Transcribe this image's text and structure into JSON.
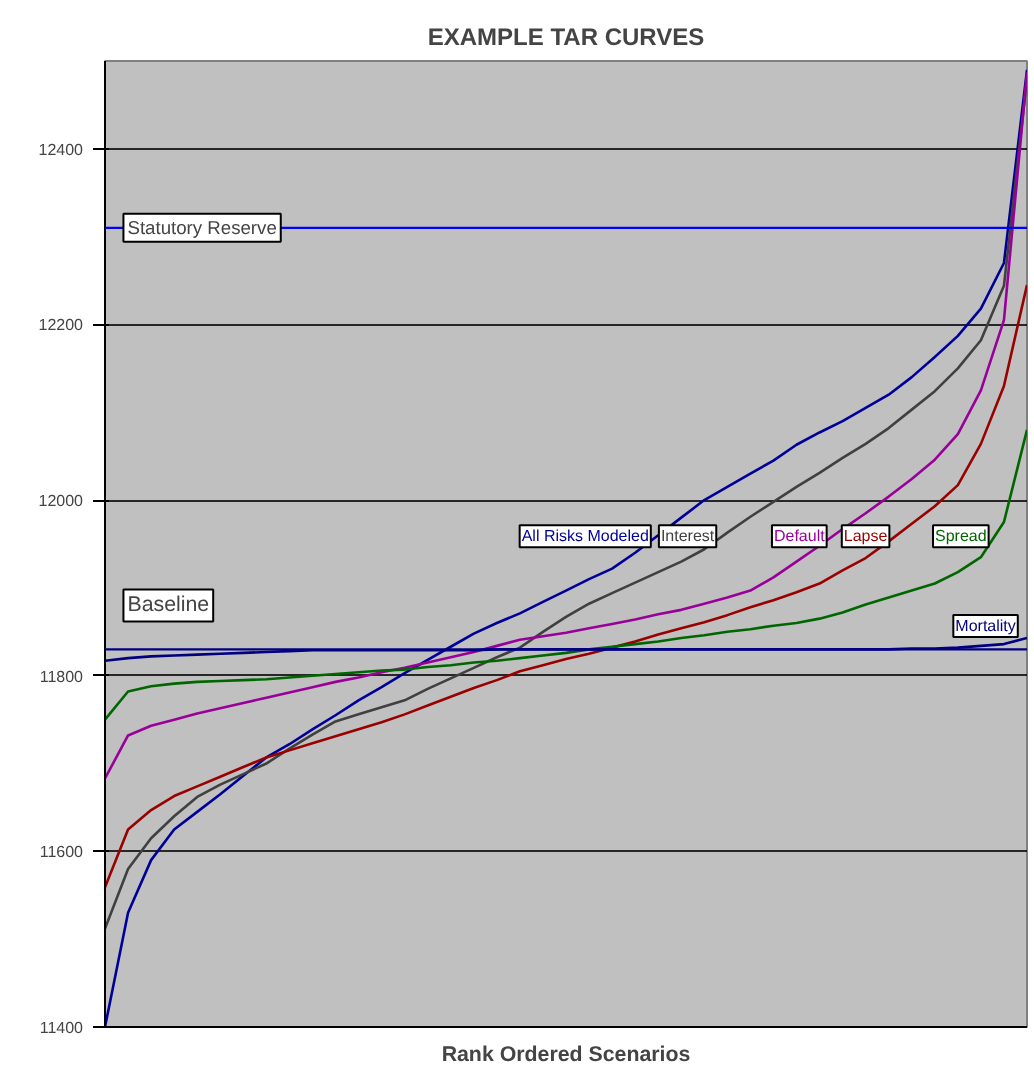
{
  "chart_data": {
    "type": "line",
    "title": "EXAMPLE TAR CURVES",
    "xlabel": "Rank Ordered Scenarios",
    "categories": [
      null,
      null,
      null,
      null,
      null,
      null,
      null,
      null,
      null,
      null,
      null,
      null,
      null,
      null,
      null,
      null,
      null,
      null,
      null,
      null,
      null,
      null,
      null,
      null,
      null,
      null,
      null,
      null,
      null,
      null,
      null,
      null,
      null,
      null,
      null,
      null,
      null,
      null,
      null,
      null,
      null
    ],
    "ylim": [
      11400,
      12500
    ],
    "yticks": [
      11400,
      11600,
      11800,
      12000,
      12200,
      12400
    ],
    "grid": "y",
    "tick_labels": "y",
    "marker": "none",
    "line_style": "solid",
    "series": [
      {
        "name": "All Risks Modeled",
        "color": "#000099",
        "values": [
          11400,
          11530,
          11590,
          11625,
          11645,
          11665,
          11686,
          11707,
          11722,
          11739,
          11755,
          11772,
          11787,
          11803,
          11818,
          11833,
          11848,
          11860,
          11871,
          11884,
          11897,
          11910,
          11922,
          11940,
          11960,
          11980,
          12000,
          12015,
          12030,
          12045,
          12063,
          12077,
          12090,
          12105,
          12120,
          12140,
          12163,
          12187,
          12218,
          12270,
          12490
        ]
      },
      {
        "name": "Interest",
        "color": "#404040",
        "values": [
          11512,
          11580,
          11615,
          11640,
          11662,
          11676,
          11688,
          11700,
          11717,
          11733,
          11748,
          11756,
          11764,
          11772,
          11785,
          11797,
          11809,
          11821,
          11832,
          11850,
          11867,
          11882,
          11894,
          11906,
          11918,
          11930,
          11944,
          11963,
          11981,
          11998,
          12015,
          12031,
          12048,
          12064,
          12082,
          12103,
          12124,
          12150,
          12182,
          12244,
          12480
        ]
      },
      {
        "name": "Default",
        "color": "#990099",
        "values": [
          11683,
          11732,
          11743,
          11750,
          11757,
          11763,
          11769,
          11775,
          11781,
          11787,
          11793,
          11798,
          11804,
          11809,
          11815,
          11821,
          11827,
          11834,
          11841,
          11845,
          11849,
          11854,
          11859,
          11864,
          11870,
          11875,
          11882,
          11889,
          11897,
          11912,
          11930,
          11948,
          11967,
          11985,
          12004,
          12024,
          12046,
          12075,
          12125,
          12205,
          12487
        ]
      },
      {
        "name": "Lapse",
        "color": "#990000",
        "values": [
          11559,
          11625,
          11647,
          11663,
          11674,
          11685,
          11696,
          11707,
          11715,
          11723,
          11731,
          11739,
          11747,
          11756,
          11766,
          11776,
          11786,
          11795,
          11805,
          11812,
          11819,
          11825,
          11832,
          11839,
          11847,
          11854,
          11861,
          11869,
          11878,
          11886,
          11895,
          11905,
          11920,
          11934,
          11953,
          11973,
          11993,
          12017,
          12064,
          12130,
          12245
        ]
      },
      {
        "name": "Spread",
        "color": "#006600",
        "values": [
          11750,
          11782,
          11788,
          11791,
          11793,
          11794,
          11795,
          11796,
          11798,
          11800,
          11802,
          11804,
          11806,
          11807,
          11810,
          11812,
          11815,
          11817,
          11820,
          11823,
          11826,
          11830,
          11833,
          11836,
          11839,
          11843,
          11846,
          11850,
          11853,
          11857,
          11860,
          11865,
          11872,
          11881,
          11889,
          11897,
          11905,
          11918,
          11935,
          11975,
          12080
        ]
      },
      {
        "name": "Mortality",
        "color": "#000080",
        "values": [
          11817,
          11820,
          11822,
          11823,
          11824,
          11825,
          11826,
          11827,
          11828,
          11829,
          11829,
          11829,
          11829,
          11829,
          11829,
          11829,
          11829,
          11830,
          11830,
          11830,
          11830,
          11830,
          11830,
          11830,
          11830,
          11830,
          11830,
          11830,
          11830,
          11830,
          11830,
          11830,
          11830,
          11830,
          11830,
          11831,
          11831,
          11832,
          11834,
          11836,
          11843
        ]
      }
    ],
    "ref_lines": [
      {
        "axis": "y",
        "value": 12310,
        "label": "Statutory Reserve",
        "color": "#0000ff"
      },
      {
        "axis": "y",
        "value": 11830,
        "label": "Baseline",
        "color": "#000080"
      }
    ]
  }
}
